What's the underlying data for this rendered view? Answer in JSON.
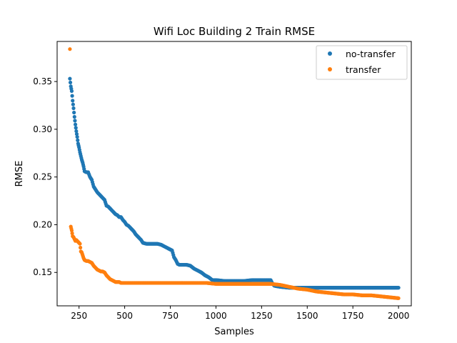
{
  "chart_data": {
    "type": "scatter",
    "title": "Wifi Loc Building 2 Train RMSE",
    "xlabel": "Samples",
    "ylabel": "RMSE",
    "xlim": [
      130,
      2070
    ],
    "ylim": [
      0.115,
      0.392
    ],
    "xticks": [
      250,
      500,
      750,
      1000,
      1250,
      1500,
      1750,
      2000
    ],
    "xtick_labels": [
      "250",
      "500",
      "750",
      "1000",
      "1250",
      "1500",
      "1750",
      "2000"
    ],
    "yticks": [
      0.15,
      0.2,
      0.25,
      0.3,
      0.35
    ],
    "ytick_labels": [
      "0.15",
      "0.20",
      "0.25",
      "0.30",
      "0.35"
    ],
    "grid": false,
    "legend_position": "top-right",
    "series": [
      {
        "name": "no-transfer",
        "color": "#1f77b4",
        "x": [
          200,
          205,
          210,
          215,
          220,
          225,
          230,
          235,
          240,
          245,
          250,
          255,
          260,
          265,
          270,
          275,
          280,
          290,
          300,
          310,
          320,
          330,
          340,
          350,
          360,
          370,
          380,
          390,
          400,
          410,
          420,
          430,
          440,
          450,
          460,
          470,
          480,
          490,
          500,
          510,
          520,
          530,
          540,
          550,
          560,
          570,
          580,
          590,
          600,
          620,
          640,
          660,
          680,
          700,
          720,
          740,
          760,
          770,
          780,
          790,
          800,
          820,
          840,
          860,
          880,
          900,
          920,
          940,
          960,
          980,
          1000,
          1050,
          1100,
          1150,
          1200,
          1250,
          1300,
          1310,
          1320,
          1350,
          1400,
          1450,
          1500,
          1550,
          1600,
          1650,
          1700,
          1750,
          1800,
          1850,
          1900,
          1950,
          2000
        ],
        "y": [
          0.353,
          0.345,
          0.34,
          0.33,
          0.322,
          0.313,
          0.305,
          0.298,
          0.292,
          0.285,
          0.281,
          0.276,
          0.272,
          0.268,
          0.265,
          0.261,
          0.256,
          0.255,
          0.255,
          0.25,
          0.247,
          0.24,
          0.237,
          0.234,
          0.232,
          0.23,
          0.228,
          0.226,
          0.22,
          0.219,
          0.217,
          0.215,
          0.213,
          0.211,
          0.21,
          0.208,
          0.208,
          0.205,
          0.203,
          0.2,
          0.199,
          0.197,
          0.195,
          0.193,
          0.19,
          0.188,
          0.186,
          0.184,
          0.181,
          0.18,
          0.18,
          0.18,
          0.18,
          0.179,
          0.177,
          0.175,
          0.173,
          0.166,
          0.163,
          0.159,
          0.158,
          0.158,
          0.158,
          0.157,
          0.154,
          0.152,
          0.15,
          0.147,
          0.145,
          0.142,
          0.142,
          0.141,
          0.141,
          0.141,
          0.142,
          0.142,
          0.142,
          0.138,
          0.136,
          0.135,
          0.134,
          0.134,
          0.134,
          0.134,
          0.134,
          0.134,
          0.134,
          0.134,
          0.134,
          0.134,
          0.134,
          0.134,
          0.134
        ]
      },
      {
        "name": "transfer",
        "color": "#ff7f0e",
        "x": [
          200,
          205,
          210,
          215,
          220,
          225,
          230,
          235,
          240,
          245,
          250,
          255,
          260,
          265,
          270,
          275,
          280,
          290,
          300,
          310,
          320,
          330,
          340,
          350,
          360,
          370,
          380,
          390,
          400,
          410,
          420,
          430,
          440,
          450,
          460,
          470,
          480,
          500,
          550,
          600,
          650,
          700,
          750,
          800,
          850,
          900,
          950,
          1000,
          1050,
          1100,
          1150,
          1200,
          1250,
          1300,
          1350,
          1400,
          1450,
          1500,
          1550,
          1600,
          1650,
          1700,
          1750,
          1800,
          1850,
          1900,
          1950,
          2000
        ],
        "y": [
          0.384,
          0.198,
          0.194,
          0.188,
          0.187,
          0.185,
          0.183,
          0.184,
          0.183,
          0.182,
          0.181,
          0.18,
          0.172,
          0.171,
          0.168,
          0.165,
          0.163,
          0.162,
          0.162,
          0.161,
          0.16,
          0.157,
          0.155,
          0.153,
          0.152,
          0.151,
          0.151,
          0.15,
          0.147,
          0.145,
          0.143,
          0.142,
          0.141,
          0.14,
          0.14,
          0.14,
          0.139,
          0.139,
          0.139,
          0.139,
          0.139,
          0.139,
          0.139,
          0.139,
          0.139,
          0.139,
          0.139,
          0.138,
          0.138,
          0.138,
          0.138,
          0.138,
          0.138,
          0.138,
          0.137,
          0.135,
          0.133,
          0.132,
          0.13,
          0.129,
          0.128,
          0.127,
          0.127,
          0.126,
          0.126,
          0.125,
          0.124,
          0.123
        ]
      }
    ]
  }
}
